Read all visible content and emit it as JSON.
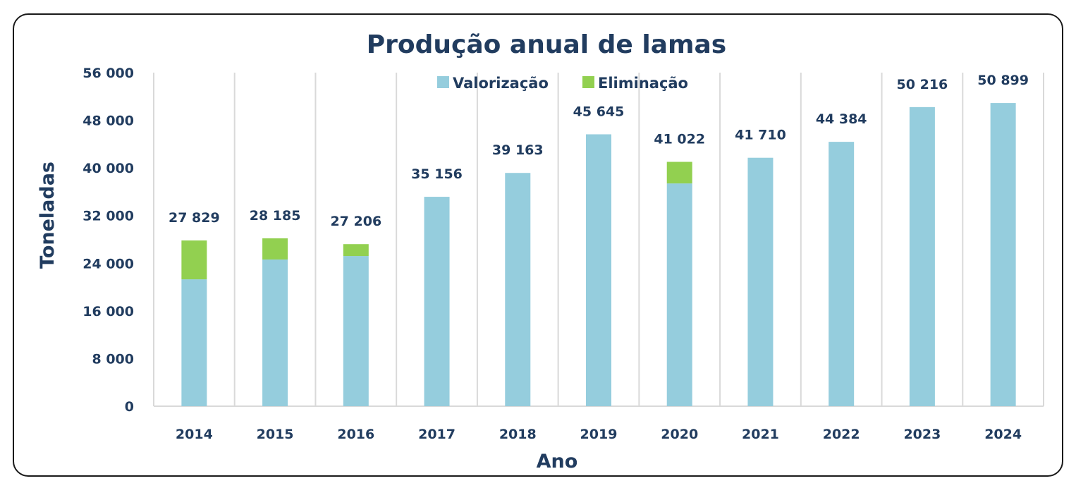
{
  "chart_data": {
    "type": "bar",
    "stacked": true,
    "title": "Produção anual de lamas",
    "xlabel": "Ano",
    "ylabel": "Toneladas",
    "ylim": [
      0,
      56000
    ],
    "yticks": [
      0,
      8000,
      16000,
      24000,
      32000,
      40000,
      48000,
      56000
    ],
    "ytick_labels": [
      "0",
      "8 000",
      "16 000",
      "24 000",
      "32 000",
      "40 000",
      "48 000",
      "56 000"
    ],
    "grid": "vertical",
    "legend_position": "top-center",
    "categories": [
      "2014",
      "2015",
      "2016",
      "2017",
      "2018",
      "2019",
      "2020",
      "2021",
      "2022",
      "2023",
      "2024"
    ],
    "series": [
      {
        "name": "Valorização",
        "color": "#95cddd",
        "values": [
          21300,
          24630,
          25210,
          35156,
          39163,
          45645,
          37400,
          41710,
          44384,
          50216,
          50899
        ]
      },
      {
        "name": "Eliminação",
        "color": "#92d050",
        "values": [
          6529,
          3555,
          1996,
          0,
          0,
          0,
          3622,
          0,
          0,
          0,
          0
        ]
      }
    ],
    "totals": [
      27829,
      28185,
      27206,
      35156,
      39163,
      45645,
      41022,
      41710,
      44384,
      50216,
      50899
    ],
    "total_labels": [
      "27 829",
      "28 185",
      "27 206",
      "35 156",
      "39 163",
      "45 645",
      "41 022",
      "41 710",
      "44 384",
      "50 216",
      "50 899"
    ]
  }
}
